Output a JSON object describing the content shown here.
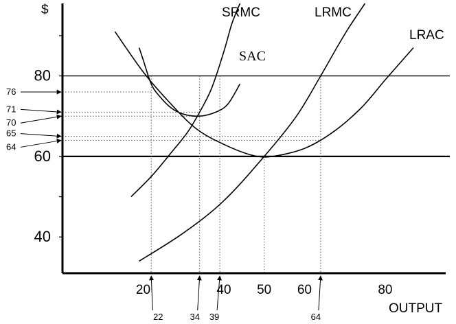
{
  "chart_data": {
    "type": "line",
    "ylabel": "$",
    "xlabel": "OUTPUT",
    "xlim": [
      0,
      95
    ],
    "ylim": [
      31,
      98
    ],
    "x_ticks": [
      20,
      30,
      40,
      50,
      60,
      80
    ],
    "x_tick_labels": [
      "20",
      "",
      "40",
      "50",
      "60",
      "80"
    ],
    "y_ticks": [
      40,
      60,
      80
    ],
    "y_tick_labels": [
      "40",
      "60",
      "80"
    ],
    "horizontal_lines": [
      80,
      60
    ],
    "price_markers": [
      {
        "label": "76",
        "y": 76
      },
      {
        "label": "71",
        "y": 71
      },
      {
        "label": "70",
        "y": 70
      },
      {
        "label": "65",
        "y": 65
      },
      {
        "label": "64",
        "y": 64
      }
    ],
    "output_markers": [
      {
        "label": "22",
        "x": 22
      },
      {
        "label": "34",
        "x": 34
      },
      {
        "label": "39",
        "x": 39
      },
      {
        "label": "64",
        "x": 64
      }
    ],
    "series": [
      {
        "name": "SRMC",
        "x": [
          17,
          22,
          27,
          31,
          34,
          37,
          40,
          42,
          44
        ],
        "y": [
          50,
          55,
          61,
          66,
          71,
          77,
          86,
          93,
          98
        ]
      },
      {
        "name": "SAC",
        "x": [
          19,
          20,
          22,
          24,
          27,
          30,
          34,
          38,
          41,
          44
        ],
        "y": [
          87,
          84,
          78,
          75,
          72,
          70.5,
          70,
          71,
          73,
          78
        ]
      },
      {
        "name": "LRMC",
        "x": [
          19,
          30,
          40,
          50,
          58,
          64,
          68,
          71,
          75
        ],
        "y": [
          34,
          41,
          49,
          60,
          70,
          80,
          87,
          92,
          98
        ]
      },
      {
        "name": "LRAC",
        "x": [
          13,
          20,
          26,
          33,
          40,
          47,
          52,
          60,
          67,
          74,
          80,
          87
        ],
        "y": [
          91,
          81,
          74,
          67,
          63,
          60.3,
          60,
          62,
          66,
          72,
          79,
          87
        ]
      }
    ]
  }
}
